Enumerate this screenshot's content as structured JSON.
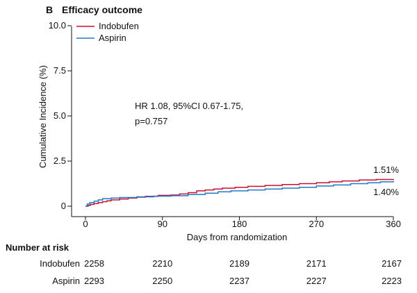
{
  "panel_label": "B",
  "chart_data": {
    "type": "line",
    "title": "Efficacy outcome",
    "xlabel": "Days from randomization",
    "ylabel": "Cumulative Incidence (%)",
    "xlim": [
      0,
      360
    ],
    "ylim": [
      0,
      10
    ],
    "xticks": [
      0,
      90,
      180,
      270,
      360
    ],
    "yticks": [
      0,
      2.5,
      5.0,
      7.5,
      10.0
    ],
    "ytick_labels": [
      "0",
      "2.5",
      "5.0",
      "7.5",
      "10.0"
    ],
    "legend_position": "top-left",
    "colors": {
      "Indobufen": "#c8102e",
      "Aspirin": "#1f78c8"
    },
    "series": [
      {
        "name": "Indobufen",
        "step": true,
        "x": [
          0,
          3,
          6,
          10,
          15,
          20,
          25,
          30,
          40,
          50,
          60,
          70,
          85,
          100,
          110,
          120,
          130,
          140,
          150,
          160,
          175,
          190,
          210,
          230,
          250,
          270,
          285,
          300,
          320,
          340,
          360
        ],
        "y": [
          0,
          0.05,
          0.1,
          0.15,
          0.2,
          0.25,
          0.3,
          0.35,
          0.4,
          0.45,
          0.5,
          0.55,
          0.6,
          0.62,
          0.68,
          0.75,
          0.85,
          0.9,
          0.95,
          1.0,
          1.05,
          1.1,
          1.15,
          1.2,
          1.25,
          1.3,
          1.35,
          1.4,
          1.45,
          1.48,
          1.51
        ]
      },
      {
        "name": "Aspirin",
        "step": true,
        "x": [
          0,
          2,
          5,
          10,
          15,
          20,
          30,
          40,
          60,
          80,
          100,
          120,
          140,
          155,
          170,
          190,
          210,
          230,
          250,
          270,
          290,
          310,
          330,
          345,
          360
        ],
        "y": [
          0,
          0.12,
          0.2,
          0.28,
          0.35,
          0.42,
          0.45,
          0.48,
          0.52,
          0.56,
          0.58,
          0.65,
          0.72,
          0.8,
          0.85,
          0.9,
          0.95,
          1.0,
          1.05,
          1.12,
          1.18,
          1.25,
          1.3,
          1.35,
          1.4
        ]
      }
    ],
    "annotations": {
      "hr_line1": "HR 1.08, 95%CI 0.67-1.75,",
      "hr_line2": "p=0.757",
      "end_label_indobufen": "1.51%",
      "end_label_aspirin": "1.40%"
    }
  },
  "risk_table": {
    "header": "Number at risk",
    "rows": [
      {
        "label": "Indobufen",
        "values": [
          "2258",
          "2210",
          "2189",
          "2171",
          "2167"
        ]
      },
      {
        "label": "Aspirin",
        "values": [
          "2293",
          "2250",
          "2237",
          "2227",
          "2223"
        ]
      }
    ]
  }
}
